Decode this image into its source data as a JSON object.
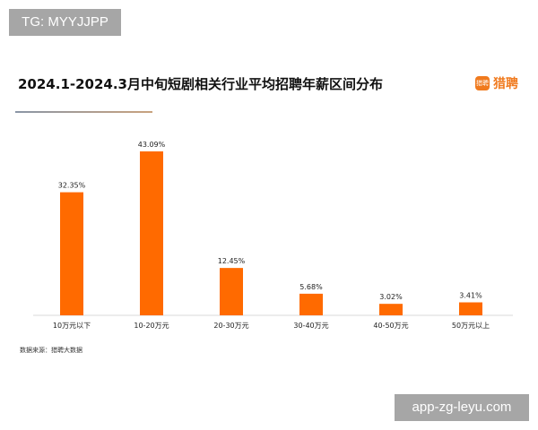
{
  "watermarks": {
    "top_left": "TG: MYYJJPP",
    "bottom_right": "app-zg-leyu.com"
  },
  "logo": {
    "icon_text": "猎聘",
    "text": "猎聘"
  },
  "source": "数据来源：猎聘大数据",
  "chart_data": {
    "type": "bar",
    "title": "2024.1-2024.3月中旬短剧相关行业平均招聘年薪区间分布",
    "categories": [
      "10万元以下",
      "10-20万元",
      "20-30万元",
      "30-40万元",
      "40-50万元",
      "50万元以上"
    ],
    "values": [
      32.35,
      43.09,
      12.45,
      5.68,
      3.02,
      3.41
    ],
    "data_labels": [
      "32.35%",
      "43.09%",
      "12.45%",
      "5.68%",
      "3.02%",
      "3.41%"
    ],
    "unit": "%",
    "color": "#ff6a00",
    "grid": false,
    "legend": "none"
  }
}
